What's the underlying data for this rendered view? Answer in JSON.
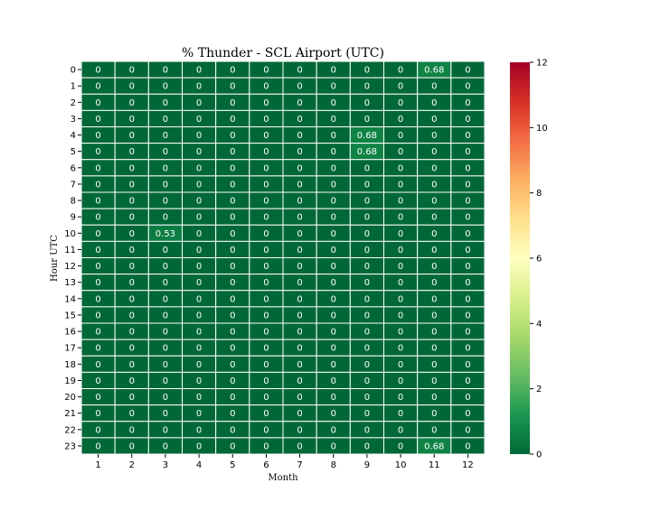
{
  "chart_data": {
    "type": "heatmap",
    "title": "% Thunder - SCL Airport (UTC)",
    "xlabel": "Month",
    "ylabel": "Hour UTC",
    "x_categories": [
      "1",
      "2",
      "3",
      "4",
      "5",
      "6",
      "7",
      "8",
      "9",
      "10",
      "11",
      "12"
    ],
    "y_categories": [
      "0",
      "1",
      "2",
      "3",
      "4",
      "5",
      "6",
      "7",
      "8",
      "9",
      "10",
      "11",
      "12",
      "13",
      "14",
      "15",
      "16",
      "17",
      "18",
      "19",
      "20",
      "21",
      "22",
      "23"
    ],
    "values": [
      [
        0,
        0,
        0,
        0,
        0,
        0,
        0,
        0,
        0,
        0,
        0.68,
        0
      ],
      [
        0,
        0,
        0,
        0,
        0,
        0,
        0,
        0,
        0,
        0,
        0,
        0
      ],
      [
        0,
        0,
        0,
        0,
        0,
        0,
        0,
        0,
        0,
        0,
        0,
        0
      ],
      [
        0,
        0,
        0,
        0,
        0,
        0,
        0,
        0,
        0,
        0,
        0,
        0
      ],
      [
        0,
        0,
        0,
        0,
        0,
        0,
        0,
        0,
        0.68,
        0,
        0,
        0
      ],
      [
        0,
        0,
        0,
        0,
        0,
        0,
        0,
        0,
        0.68,
        0,
        0,
        0
      ],
      [
        0,
        0,
        0,
        0,
        0,
        0,
        0,
        0,
        0,
        0,
        0,
        0
      ],
      [
        0,
        0,
        0,
        0,
        0,
        0,
        0,
        0,
        0,
        0,
        0,
        0
      ],
      [
        0,
        0,
        0,
        0,
        0,
        0,
        0,
        0,
        0,
        0,
        0,
        0
      ],
      [
        0,
        0,
        0,
        0,
        0,
        0,
        0,
        0,
        0,
        0,
        0,
        0
      ],
      [
        0,
        0,
        0.53,
        0,
        0,
        0,
        0,
        0,
        0,
        0,
        0,
        0
      ],
      [
        0,
        0,
        0,
        0,
        0,
        0,
        0,
        0,
        0,
        0,
        0,
        0
      ],
      [
        0,
        0,
        0,
        0,
        0,
        0,
        0,
        0,
        0,
        0,
        0,
        0
      ],
      [
        0,
        0,
        0,
        0,
        0,
        0,
        0,
        0,
        0,
        0,
        0,
        0
      ],
      [
        0,
        0,
        0,
        0,
        0,
        0,
        0,
        0,
        0,
        0,
        0,
        0
      ],
      [
        0,
        0,
        0,
        0,
        0,
        0,
        0,
        0,
        0,
        0,
        0,
        0
      ],
      [
        0,
        0,
        0,
        0,
        0,
        0,
        0,
        0,
        0,
        0,
        0,
        0
      ],
      [
        0,
        0,
        0,
        0,
        0,
        0,
        0,
        0,
        0,
        0,
        0,
        0
      ],
      [
        0,
        0,
        0,
        0,
        0,
        0,
        0,
        0,
        0,
        0,
        0,
        0
      ],
      [
        0,
        0,
        0,
        0,
        0,
        0,
        0,
        0,
        0,
        0,
        0,
        0
      ],
      [
        0,
        0,
        0,
        0,
        0,
        0,
        0,
        0,
        0,
        0,
        0,
        0
      ],
      [
        0,
        0,
        0,
        0,
        0,
        0,
        0,
        0,
        0,
        0,
        0,
        0
      ],
      [
        0,
        0,
        0,
        0,
        0,
        0,
        0,
        0,
        0,
        0,
        0,
        0
      ],
      [
        0,
        0,
        0,
        0,
        0,
        0,
        0,
        0,
        0,
        0,
        0.68,
        0
      ]
    ],
    "colorbar": {
      "colormap": "RdYlGn_r",
      "range": [
        0,
        12
      ],
      "ticks": [
        0,
        2,
        4,
        6,
        8,
        10,
        12
      ],
      "stops": [
        "#006837",
        "#1a9850",
        "#66bd63",
        "#a6d96a",
        "#d9ef8b",
        "#ffffbf",
        "#fee08b",
        "#fdae61",
        "#f46d43",
        "#d73027",
        "#a50026"
      ]
    },
    "grid": false,
    "cell_annotations": true
  }
}
